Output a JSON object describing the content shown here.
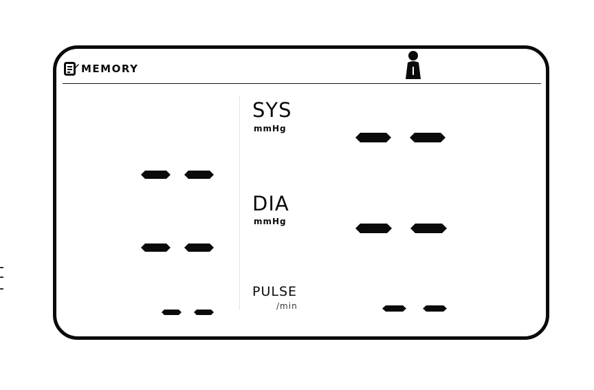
{
  "header": {
    "mode_label": "MEMORY",
    "mode_icon": "memo-icon",
    "user_icon": "user-icon"
  },
  "readings": {
    "systolic": {
      "label": "SYS",
      "unit": "mmHg"
    },
    "diastolic": {
      "label": "DIA",
      "unit": "mmHg"
    },
    "pulse": {
      "label": "PULSE",
      "unit": "/min"
    }
  },
  "colors": {
    "ink": "#0a0a0a",
    "background": "#ffffff"
  }
}
